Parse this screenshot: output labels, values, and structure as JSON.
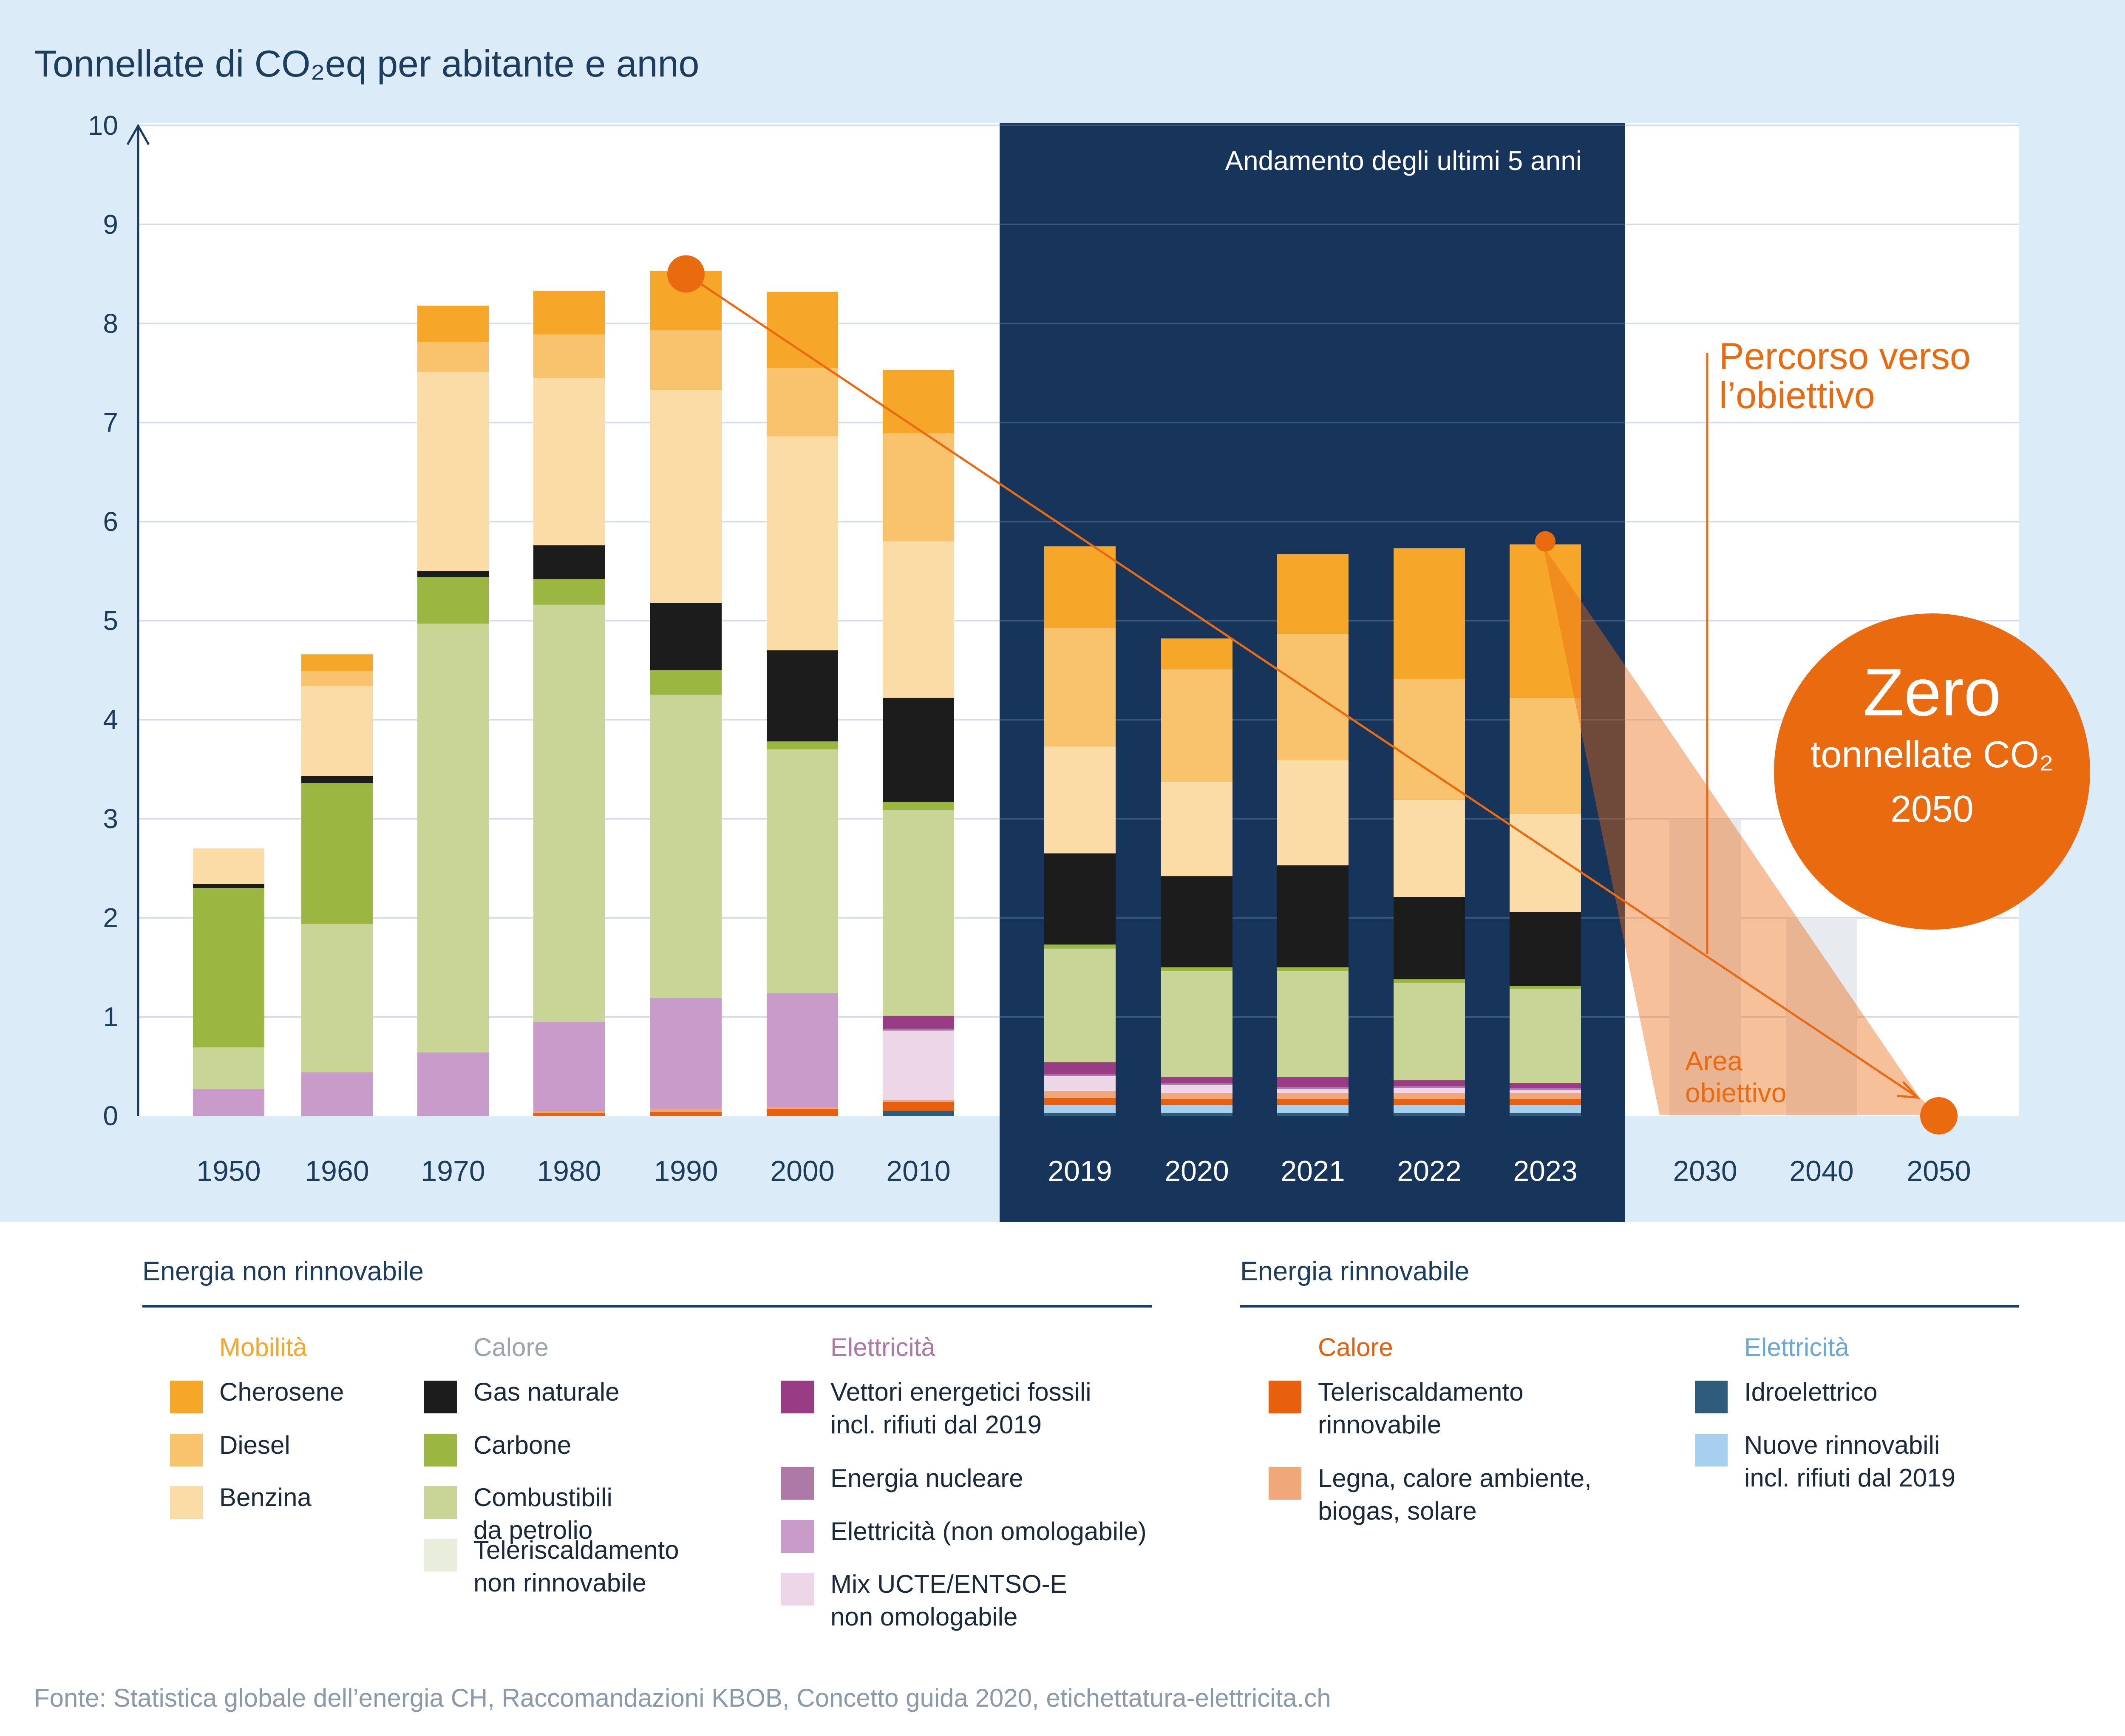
{
  "chart_data": {
    "type": "bar",
    "stacked": true,
    "title": "Tonnellate di CO₂eq per abitante e anno",
    "ylim": [
      0,
      10
    ],
    "yticks": [
      0,
      1,
      2,
      3,
      4,
      5,
      6,
      7,
      8,
      9,
      10
    ],
    "ytick_labels": [
      "0",
      "1",
      "2",
      "3",
      "4",
      "5",
      "6",
      "7",
      "8",
      "9",
      "10"
    ],
    "highlight_label": "Andamento degli ultimi 5 anni",
    "path_label": "Percorso verso l’obiettivo",
    "target_area_label": "Area obiettivo",
    "zero_badge": {
      "line1": "Zero",
      "line2": "tonnellate CO₂",
      "line3": "2050"
    },
    "path_start": {
      "year": "1990",
      "value": 8.5
    },
    "path_mid": {
      "year": "2023",
      "value": 5.8
    },
    "path_end": {
      "year": "2050",
      "value": 0
    },
    "target_levels": [
      {
        "year": "2030",
        "value": 3.0
      },
      {
        "year": "2040",
        "value": 2.0
      },
      {
        "year": "2050",
        "value": 0.0
      }
    ],
    "categories": [
      "1950",
      "1960",
      "1970",
      "1980",
      "1990",
      "2000",
      "2010",
      "2019",
      "2020",
      "2021",
      "2022",
      "2023",
      "2030",
      "2040",
      "2050"
    ],
    "series": [
      {
        "name": "Idroelettrico",
        "color": "#2f5b7c",
        "values": [
          0,
          0,
          0,
          0,
          0,
          0,
          0.05,
          0.03,
          0.03,
          0.03,
          0.03,
          0.03,
          null,
          null,
          null
        ]
      },
      {
        "name": "Nuove rinnovabili incl. rifiuti dal 2019",
        "color": "#a9cfee",
        "values": [
          0,
          0,
          0,
          0,
          0,
          0,
          0,
          0.08,
          0.08,
          0.08,
          0.08,
          0.08,
          null,
          null,
          null
        ]
      },
      {
        "name": "Teleriscaldamento rinnovabile",
        "color": "#e8600e",
        "values": [
          0,
          0,
          0,
          0.03,
          0.04,
          0.07,
          0.09,
          0.07,
          0.06,
          0.06,
          0.06,
          0.06,
          null,
          null,
          null
        ]
      },
      {
        "name": "Legna, calore ambiente, biogas, solare",
        "color": "#f0a77a",
        "values": [
          0,
          0,
          0,
          0.02,
          0.03,
          0.02,
          0.02,
          0.07,
          0.06,
          0.06,
          0.06,
          0.06,
          null,
          null,
          null
        ]
      },
      {
        "name": "Mix UCTE/ENTSO-E non omologabile",
        "color": "#ecd6e8",
        "values": [
          0,
          0,
          0,
          0,
          0,
          0,
          0.7,
          0.15,
          0.08,
          0.04,
          0.05,
          0.03,
          null,
          null,
          null
        ]
      },
      {
        "name": "Elettricità (non omologabile)",
        "color": "#c99bca",
        "values": [
          0.27,
          0.44,
          0.64,
          0.9,
          1.12,
          1.15,
          0,
          0,
          0,
          0,
          0,
          0,
          null,
          null,
          null
        ]
      },
      {
        "name": "Energia nucleare",
        "color": "#ad7aa8",
        "values": [
          0,
          0,
          0,
          0,
          0,
          0,
          0.02,
          0.02,
          0.02,
          0.02,
          0.02,
          0.02,
          null,
          null,
          null
        ]
      },
      {
        "name": "Vettori energetici fossili incl. rifiuti dal 2019",
        "color": "#9a3c85",
        "values": [
          0,
          0,
          0,
          0,
          0,
          0,
          0.13,
          0.12,
          0.06,
          0.1,
          0.06,
          0.05,
          null,
          null,
          null
        ]
      },
      {
        "name": "Teleriscaldamento non rinnovabile",
        "color": "#e8eedb",
        "values": [
          0,
          0,
          0,
          0,
          0,
          0,
          0,
          0,
          0,
          0,
          0,
          0,
          null,
          null,
          null
        ]
      },
      {
        "name": "Combustibili da petrolio",
        "color": "#c8d597",
        "values": [
          0.42,
          1.5,
          4.33,
          4.21,
          3.06,
          2.46,
          2.08,
          1.15,
          1.07,
          1.07,
          0.98,
          0.95,
          null,
          null,
          null
        ]
      },
      {
        "name": "Carbone",
        "color": "#9bb641",
        "values": [
          1.61,
          1.42,
          0.47,
          0.26,
          0.25,
          0.08,
          0.08,
          0.04,
          0.04,
          0.04,
          0.04,
          0.03,
          null,
          null,
          null
        ]
      },
      {
        "name": "Gas naturale",
        "color": "#1c1c1c",
        "values": [
          0.04,
          0.07,
          0.06,
          0.34,
          0.68,
          0.92,
          1.05,
          0.92,
          0.92,
          1.03,
          0.83,
          0.75,
          null,
          null,
          null
        ]
      },
      {
        "name": "Benzina",
        "color": "#fbdca6",
        "values": [
          0.36,
          0.91,
          2.01,
          1.69,
          2.15,
          2.16,
          1.58,
          1.08,
          0.95,
          1.06,
          0.98,
          0.99,
          null,
          null,
          null
        ]
      },
      {
        "name": "Diesel",
        "color": "#f9c26c",
        "values": [
          0,
          0.15,
          0.3,
          0.44,
          0.6,
          0.69,
          1.09,
          1.2,
          1.14,
          1.28,
          1.22,
          1.17,
          null,
          null,
          null
        ]
      },
      {
        "name": "Cherosene",
        "color": "#f6a628",
        "values": [
          0,
          0.17,
          0.37,
          0.44,
          0.6,
          0.77,
          0.64,
          0.82,
          0.31,
          0.8,
          1.32,
          1.55,
          null,
          null,
          null
        ]
      }
    ]
  },
  "legend": {
    "non_renewable_heading": "Energia non rinnovabile",
    "renewable_heading": "Energia rinnovabile",
    "groups": [
      {
        "title": "Mobilità",
        "title_color": "#f6a628",
        "items": [
          {
            "label": "Cherosene",
            "color": "#f6a628"
          },
          {
            "label": "Diesel",
            "color": "#f9c26c"
          },
          {
            "label": "Benzina",
            "color": "#fbdca6"
          }
        ]
      },
      {
        "title": "Calore",
        "title_color": "#9aa4ae",
        "items": [
          {
            "label": "Gas naturale",
            "color": "#1c1c1c"
          },
          {
            "label": "Carbone",
            "color": "#9bb641"
          },
          {
            "label": "Combustibili\nda petrolio",
            "color": "#c8d597"
          },
          {
            "label": "Teleriscaldamento\nnon rinnovabile",
            "color": "#e8eedb"
          }
        ]
      },
      {
        "title": "Elettricità",
        "title_color": "#ad7aa8",
        "items": [
          {
            "label": "Vettori energetici fossili\nincl. rifiuti dal 2019",
            "color": "#9a3c85"
          },
          {
            "label": "Energia nucleare",
            "color": "#ad7aa8"
          },
          {
            "label": "Elettricità (non omologabile)",
            "color": "#c99bca"
          },
          {
            "label": "Mix UCTE/ENTSO-E\nnon omologabile",
            "color": "#ecd6e8"
          }
        ]
      },
      {
        "title": "Calore",
        "title_color": "#e8600e",
        "items": [
          {
            "label": "Teleriscaldamento\nrinnovabile",
            "color": "#e8600e"
          },
          {
            "label": "Legna, calore ambiente,\nbiogas, solare",
            "color": "#f0a77a"
          }
        ]
      },
      {
        "title": "Elettricità",
        "title_color": "#6aa8d8",
        "items": [
          {
            "label": "Idroelettrico",
            "color": "#2f5b7c"
          },
          {
            "label": "Nuove rinnovabili\nincl. rifiuti dal 2019",
            "color": "#a9cfee"
          }
        ]
      }
    ]
  },
  "source": "Fonte: Statistica globale dell’energia CH, Raccomandazioni KBOB, Concetto guida 2020, etichettatura-elettricita.ch"
}
